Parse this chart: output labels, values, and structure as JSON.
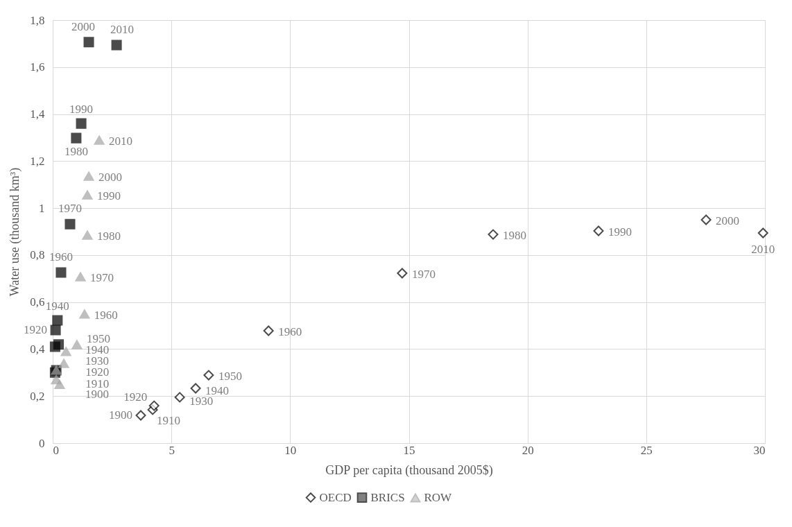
{
  "chart_data": {
    "type": "scatter",
    "xlabel": "GDP per capita  (thousand 2005$)",
    "ylabel": "Water use (thousand km³)",
    "xlim": [
      0,
      30
    ],
    "xticks": [
      0,
      5,
      10,
      15,
      20,
      25,
      30
    ],
    "ylim": [
      0,
      1.8
    ],
    "yticks": [
      0,
      {
        "value": 0.2,
        "label": "0,2"
      },
      {
        "value": 0.4,
        "label": "0,4"
      },
      {
        "value": 0.6,
        "label": "0,6"
      },
      {
        "value": 0.8,
        "label": "0,8"
      },
      1,
      {
        "value": 1.2,
        "label": "1,2"
      },
      {
        "value": 1.4,
        "label": "1,4"
      },
      {
        "value": 1.6,
        "label": "1,6"
      },
      {
        "value": 1.8,
        "label": "1,8"
      }
    ],
    "grid": true,
    "legend": "bottom",
    "series": [
      {
        "name": "OECD",
        "color": "#000000",
        "marker": "diamond",
        "x": [
          3.71,
          4.21,
          4.27,
          5.35,
          6.02,
          6.57,
          9.09,
          14.72,
          18.55,
          22.99,
          27.52,
          29.92
        ],
        "values": [
          0.118,
          0.142,
          0.159,
          0.195,
          0.233,
          0.289,
          0.478,
          0.723,
          0.888,
          0.903,
          0.95,
          0.894
        ]
      },
      {
        "name": "BRICS",
        "color": "#000000",
        "marker": "square",
        "x": [
          0.1,
          0.15,
          0.12,
          0.1,
          0.2,
          0.25,
          0.35,
          0.73,
          0.99,
          1.2,
          1.52,
          2.69
        ],
        "values": [
          0.3,
          0.31,
          0.481,
          0.41,
          0.522,
          0.42,
          0.726,
          0.932,
          1.298,
          1.36,
          1.706,
          1.694
        ]
      },
      {
        "name": "ROW",
        "color": "#a5a5a5",
        "marker": "triangle",
        "x": [
          0.29,
          0.15,
          0.15,
          0.47,
          0.56,
          1.02,
          1.34,
          1.17,
          1.46,
          1.46,
          1.52,
          1.96
        ],
        "values": [
          0.25,
          0.27,
          0.31,
          0.339,
          0.39,
          0.419,
          0.549,
          0.708,
          0.885,
          1.056,
          1.136,
          1.289
        ]
      }
    ],
    "annotations": [
      {
        "text": "1900",
        "x": 3.71,
        "y": 0.118
      },
      {
        "text": "1910",
        "x": 4.21,
        "y": 0.142
      },
      {
        "text": "1920",
        "x": 4.27,
        "y": 0.159
      },
      {
        "text": "1930",
        "x": 5.35,
        "y": 0.195
      },
      {
        "text": "1940",
        "x": 6.02,
        "y": 0.233
      },
      {
        "text": "1950",
        "x": 6.57,
        "y": 0.289
      },
      {
        "text": "1960",
        "x": 9.09,
        "y": 0.478
      },
      {
        "text": "1970",
        "x": 14.72,
        "y": 0.723
      },
      {
        "text": "1980",
        "x": 18.55,
        "y": 0.888
      },
      {
        "text": "1990",
        "x": 22.99,
        "y": 0.903
      },
      {
        "text": "2000",
        "x": 27.52,
        "y": 0.95
      },
      {
        "text": "2010",
        "x": 29.92,
        "y": 0.894
      },
      {
        "text": "1920",
        "x": 0.12,
        "y": 0.481
      },
      {
        "text": "1940",
        "x": 0.2,
        "y": 0.522
      },
      {
        "text": "1960",
        "x": 0.35,
        "y": 0.726
      },
      {
        "text": "1970",
        "x": 0.73,
        "y": 0.932
      },
      {
        "text": "1980",
        "x": 0.99,
        "y": 1.298
      },
      {
        "text": "1990",
        "x": 1.2,
        "y": 1.36
      },
      {
        "text": "2000",
        "x": 1.52,
        "y": 1.706
      },
      {
        "text": "2010",
        "x": 2.69,
        "y": 1.694
      },
      {
        "text": "1900",
        "x": 0.29,
        "y": 0.25
      },
      {
        "text": "1910",
        "x": 0.15,
        "y": 0.27
      },
      {
        "text": "1920",
        "x": 0.15,
        "y": 0.31
      },
      {
        "text": "1930",
        "x": 0.47,
        "y": 0.339
      },
      {
        "text": "1940",
        "x": 0.56,
        "y": 0.39
      },
      {
        "text": "1950",
        "x": 1.02,
        "y": 0.419
      },
      {
        "text": "1960",
        "x": 1.34,
        "y": 0.549
      },
      {
        "text": "1970",
        "x": 1.17,
        "y": 0.708
      },
      {
        "text": "1980",
        "x": 1.46,
        "y": 0.885
      },
      {
        "text": "1990",
        "x": 1.46,
        "y": 1.056
      },
      {
        "text": "2000",
        "x": 1.52,
        "y": 1.136
      },
      {
        "text": "2010",
        "x": 1.96,
        "y": 1.289
      }
    ]
  }
}
